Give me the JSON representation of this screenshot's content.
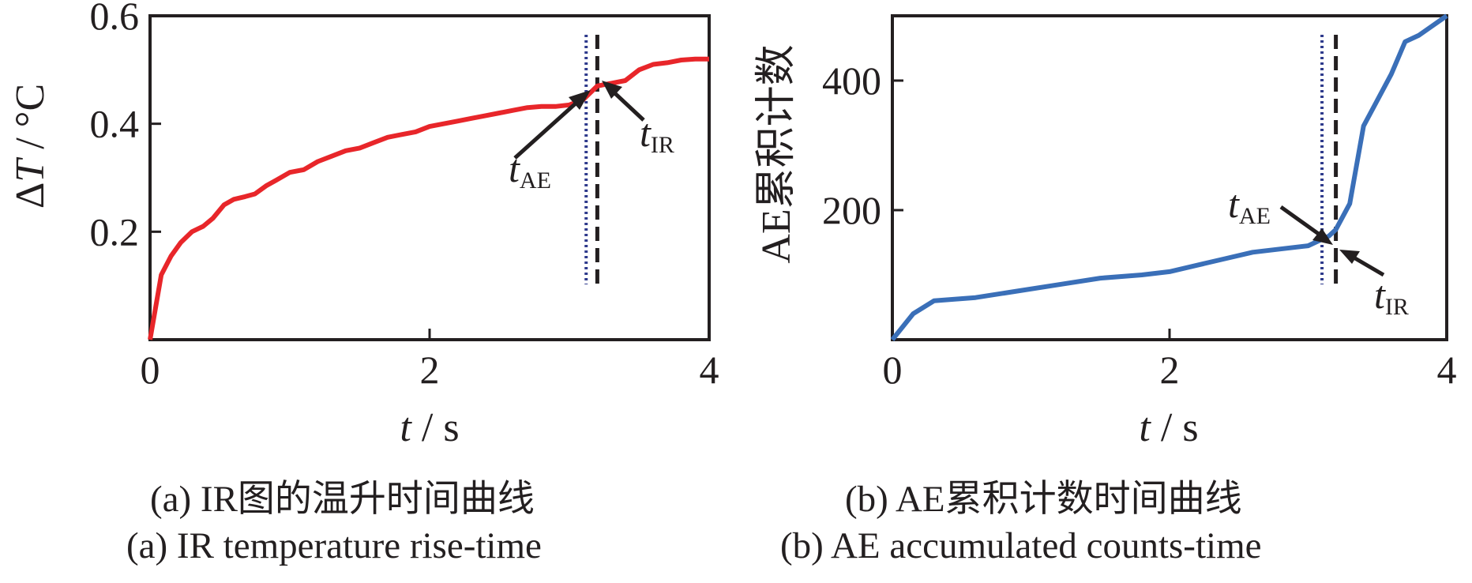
{
  "colors": {
    "series_a": "#e8262a",
    "series_b": "#3a6fb8",
    "t_ae_line": "#2e3a8c",
    "t_ir_line": "#231f20",
    "axis": "#231f20"
  },
  "captions": {
    "a_zh": "(a)  IR图的温升时间曲线",
    "a_en": "(a)  IR temperature rise-time",
    "b_zh": "(b)  AE累积计数时间曲线",
    "b_en": "(b)  AE accumulated counts-time"
  },
  "chart_data": [
    {
      "type": "line",
      "xlabel": "t / s",
      "ylabel": "ΔT / °C",
      "xlim": [
        0,
        4
      ],
      "ylim": [
        0,
        0.6
      ],
      "xticks": [
        0,
        2,
        4
      ],
      "yticks": [
        0.2,
        0.4,
        0.6
      ],
      "xtick_labels": [
        "0",
        "2",
        "4"
      ],
      "ytick_labels": [
        "0.2",
        "0.4",
        "0.6"
      ],
      "grid": false,
      "series": [
        {
          "x": [
            0,
            0.08,
            0.15,
            0.22,
            0.3,
            0.38,
            0.45,
            0.53,
            0.6,
            0.68,
            0.75,
            0.83,
            0.9,
            1.0,
            1.1,
            1.2,
            1.3,
            1.4,
            1.5,
            1.6,
            1.7,
            1.8,
            1.9,
            2.0,
            2.1,
            2.2,
            2.3,
            2.4,
            2.5,
            2.6,
            2.7,
            2.8,
            2.9,
            3.0,
            3.1,
            3.2,
            3.3,
            3.4,
            3.5,
            3.6,
            3.7,
            3.8,
            3.9,
            4.0
          ],
          "y": [
            0.0,
            0.12,
            0.155,
            0.18,
            0.2,
            0.21,
            0.225,
            0.25,
            0.26,
            0.265,
            0.27,
            0.285,
            0.295,
            0.31,
            0.315,
            0.33,
            0.34,
            0.35,
            0.355,
            0.365,
            0.375,
            0.38,
            0.385,
            0.395,
            0.4,
            0.405,
            0.41,
            0.415,
            0.42,
            0.425,
            0.43,
            0.432,
            0.432,
            0.435,
            0.445,
            0.47,
            0.475,
            0.48,
            0.5,
            0.51,
            0.513,
            0.518,
            0.52,
            0.52
          ]
        }
      ],
      "markers": [
        {
          "label_base": "t",
          "label_sub": "AE",
          "x": 3.12,
          "style": "dotted"
        },
        {
          "label_base": "t",
          "label_sub": "IR",
          "x": 3.2,
          "style": "dashed"
        }
      ]
    },
    {
      "type": "line",
      "xlabel": "t / s",
      "ylabel": "AE累积计数",
      "xlim": [
        0,
        4
      ],
      "ylim": [
        0,
        500
      ],
      "xticks": [
        0,
        2,
        4
      ],
      "yticks": [
        200,
        400
      ],
      "xtick_labels": [
        "0",
        "2",
        "4"
      ],
      "ytick_labels": [
        "200",
        "400"
      ],
      "grid": false,
      "series": [
        {
          "x": [
            0,
            0.15,
            0.3,
            0.6,
            0.9,
            1.2,
            1.5,
            1.8,
            2.0,
            2.2,
            2.4,
            2.6,
            2.8,
            3.0,
            3.1,
            3.15,
            3.2,
            3.3,
            3.4,
            3.5,
            3.6,
            3.7,
            3.8,
            3.9,
            4.0
          ],
          "y": [
            0,
            40,
            60,
            65,
            75,
            85,
            95,
            100,
            105,
            115,
            125,
            135,
            140,
            145,
            155,
            160,
            170,
            210,
            330,
            370,
            410,
            460,
            470,
            485,
            500
          ]
        }
      ],
      "markers": [
        {
          "label_base": "t",
          "label_sub": "AE",
          "x": 3.1,
          "style": "dotted"
        },
        {
          "label_base": "t",
          "label_sub": "IR",
          "x": 3.2,
          "style": "dashed"
        }
      ]
    }
  ]
}
